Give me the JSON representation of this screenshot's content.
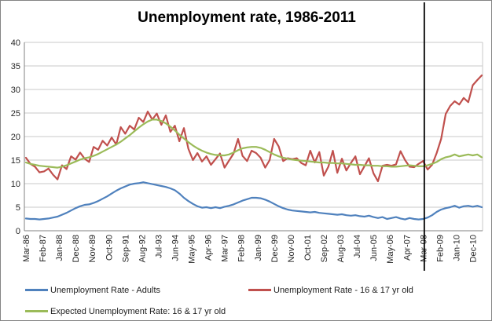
{
  "title": "Unemployment rate, 1986-2011",
  "colors": {
    "adults_line": "#4F81BD",
    "youth_line": "#C0504D",
    "expected_line": "#9BBB59",
    "gridline": "#C8C8C8",
    "axis_line": "#808080",
    "tick_text": "#262626",
    "annotation_line": "#000000",
    "chart_border": "#848484"
  },
  "chart_data": {
    "type": "line",
    "title": "Unemployment rate, 1986-2011",
    "ylim": [
      0,
      40
    ],
    "y_ticks": [
      0,
      5,
      10,
      15,
      20,
      25,
      30,
      35,
      40
    ],
    "grid": true,
    "legend_position": "bottom",
    "x_tick_labels": [
      "Mar-86",
      "Feb-87",
      "Jan-88",
      "Dec-88",
      "Nov-89",
      "Oct-90",
      "Sep-91",
      "Aug-92",
      "Jul-93",
      "Jun-94",
      "May-95",
      "Apr-96",
      "Mar-97",
      "Feb-98",
      "Jan-99",
      "Dec-99",
      "Nov-00",
      "Oct-01",
      "Sep-02",
      "Aug-03",
      "Jul-04",
      "Jun-05",
      "May-06",
      "Apr-07",
      "Mar-08",
      "Feb-09",
      "Jan-10",
      "Dec-10"
    ],
    "x_tick_interval_months": 11,
    "x_sampling_step_months": 3,
    "x_total_months": 303,
    "annotation": {
      "type": "vertical-line",
      "at_label": "Mar-08",
      "at_month": 264
    },
    "series": [
      {
        "name": "Unemployment Rate - Adults",
        "color": "#4F81BD",
        "values": [
          2.6,
          2.5,
          2.5,
          2.4,
          2.5,
          2.6,
          2.8,
          3.0,
          3.4,
          3.8,
          4.3,
          4.8,
          5.2,
          5.5,
          5.6,
          5.9,
          6.3,
          6.8,
          7.3,
          7.9,
          8.5,
          9.0,
          9.4,
          9.8,
          10.0,
          10.1,
          10.3,
          10.1,
          9.9,
          9.7,
          9.5,
          9.3,
          9.0,
          8.6,
          7.9,
          7.0,
          6.3,
          5.7,
          5.2,
          4.9,
          5.0,
          4.8,
          5.0,
          4.8,
          5.1,
          5.3,
          5.6,
          6.0,
          6.4,
          6.7,
          7.0,
          7.0,
          6.9,
          6.6,
          6.2,
          5.7,
          5.2,
          4.8,
          4.5,
          4.3,
          4.2,
          4.1,
          4.0,
          3.9,
          4.0,
          3.8,
          3.7,
          3.6,
          3.5,
          3.4,
          3.5,
          3.3,
          3.2,
          3.3,
          3.1,
          3.0,
          3.2,
          2.9,
          2.7,
          2.9,
          2.5,
          2.7,
          2.9,
          2.6,
          2.4,
          2.7,
          2.5,
          2.4,
          2.5,
          2.8,
          3.3,
          4.0,
          4.5,
          4.8,
          5.0,
          5.3,
          4.9,
          5.2,
          5.3,
          5.1,
          5.3,
          5.0
        ]
      },
      {
        "name": "Unemployment Rate - 16 & 17 yr old",
        "color": "#C0504D",
        "values": [
          15.5,
          14.2,
          13.6,
          12.4,
          12.6,
          13.2,
          11.9,
          10.9,
          13.9,
          13.1,
          15.8,
          15.1,
          16.6,
          15.3,
          14.6,
          17.8,
          17.2,
          19.1,
          18.1,
          19.8,
          18.3,
          22.0,
          20.6,
          22.3,
          21.5,
          24.0,
          23.1,
          25.3,
          23.6,
          24.9,
          22.5,
          24.5,
          21.0,
          22.3,
          19.0,
          21.8,
          17.4,
          15.0,
          16.5,
          14.7,
          15.8,
          14.0,
          15.2,
          16.4,
          13.4,
          14.9,
          16.4,
          19.5,
          15.9,
          14.8,
          17.0,
          16.5,
          15.5,
          13.4,
          15.0,
          19.5,
          17.9,
          14.8,
          15.4,
          15.2,
          15.4,
          14.4,
          13.9,
          17.0,
          14.5,
          16.7,
          11.7,
          13.6,
          17.0,
          12.3,
          15.3,
          12.8,
          14.4,
          15.8,
          12.0,
          13.7,
          15.4,
          12.2,
          10.5,
          13.8,
          14.0,
          13.8,
          14.1,
          16.9,
          15.0,
          13.6,
          13.5,
          14.2,
          14.8,
          13.0,
          14.0,
          16.5,
          19.5,
          24.8,
          26.5,
          27.5,
          26.8,
          28.2,
          27.3,
          30.9,
          32.0,
          33.0
        ]
      },
      {
        "name": "Expected Unemployment Rate: 16 & 17 yr old",
        "color": "#9BBB59",
        "values": [
          14.5,
          14.2,
          14.0,
          13.8,
          13.7,
          13.6,
          13.5,
          13.4,
          13.6,
          13.9,
          14.3,
          14.7,
          15.1,
          15.4,
          15.6,
          15.9,
          16.3,
          16.8,
          17.3,
          17.8,
          18.3,
          18.9,
          19.6,
          20.3,
          21.1,
          21.9,
          22.6,
          23.2,
          23.6,
          23.6,
          23.3,
          22.8,
          22.1,
          21.3,
          20.4,
          19.6,
          18.8,
          18.1,
          17.5,
          17.0,
          16.6,
          16.3,
          16.1,
          16.0,
          16.0,
          16.2,
          16.6,
          17.1,
          17.5,
          17.7,
          17.8,
          17.8,
          17.6,
          17.2,
          16.7,
          16.2,
          15.8,
          15.5,
          15.3,
          15.1,
          15.0,
          14.9,
          14.8,
          14.7,
          14.6,
          14.5,
          14.5,
          14.4,
          14.4,
          14.3,
          14.3,
          14.2,
          14.1,
          14.0,
          14.0,
          13.9,
          13.9,
          13.8,
          13.8,
          13.7,
          13.7,
          13.6,
          13.6,
          13.7,
          13.8,
          13.9,
          13.8,
          13.7,
          13.7,
          13.9,
          14.2,
          14.6,
          15.2,
          15.6,
          15.8,
          16.2,
          15.8,
          16.0,
          16.2,
          16.0,
          16.2,
          15.6
        ]
      }
    ]
  },
  "legend": {
    "row1_item1": "Unemployment Rate - Adults",
    "row1_item2": "Unemployment Rate - 16 & 17 yr old",
    "row2_item1": "Expected Unemployment Rate: 16 & 17 yr old"
  }
}
